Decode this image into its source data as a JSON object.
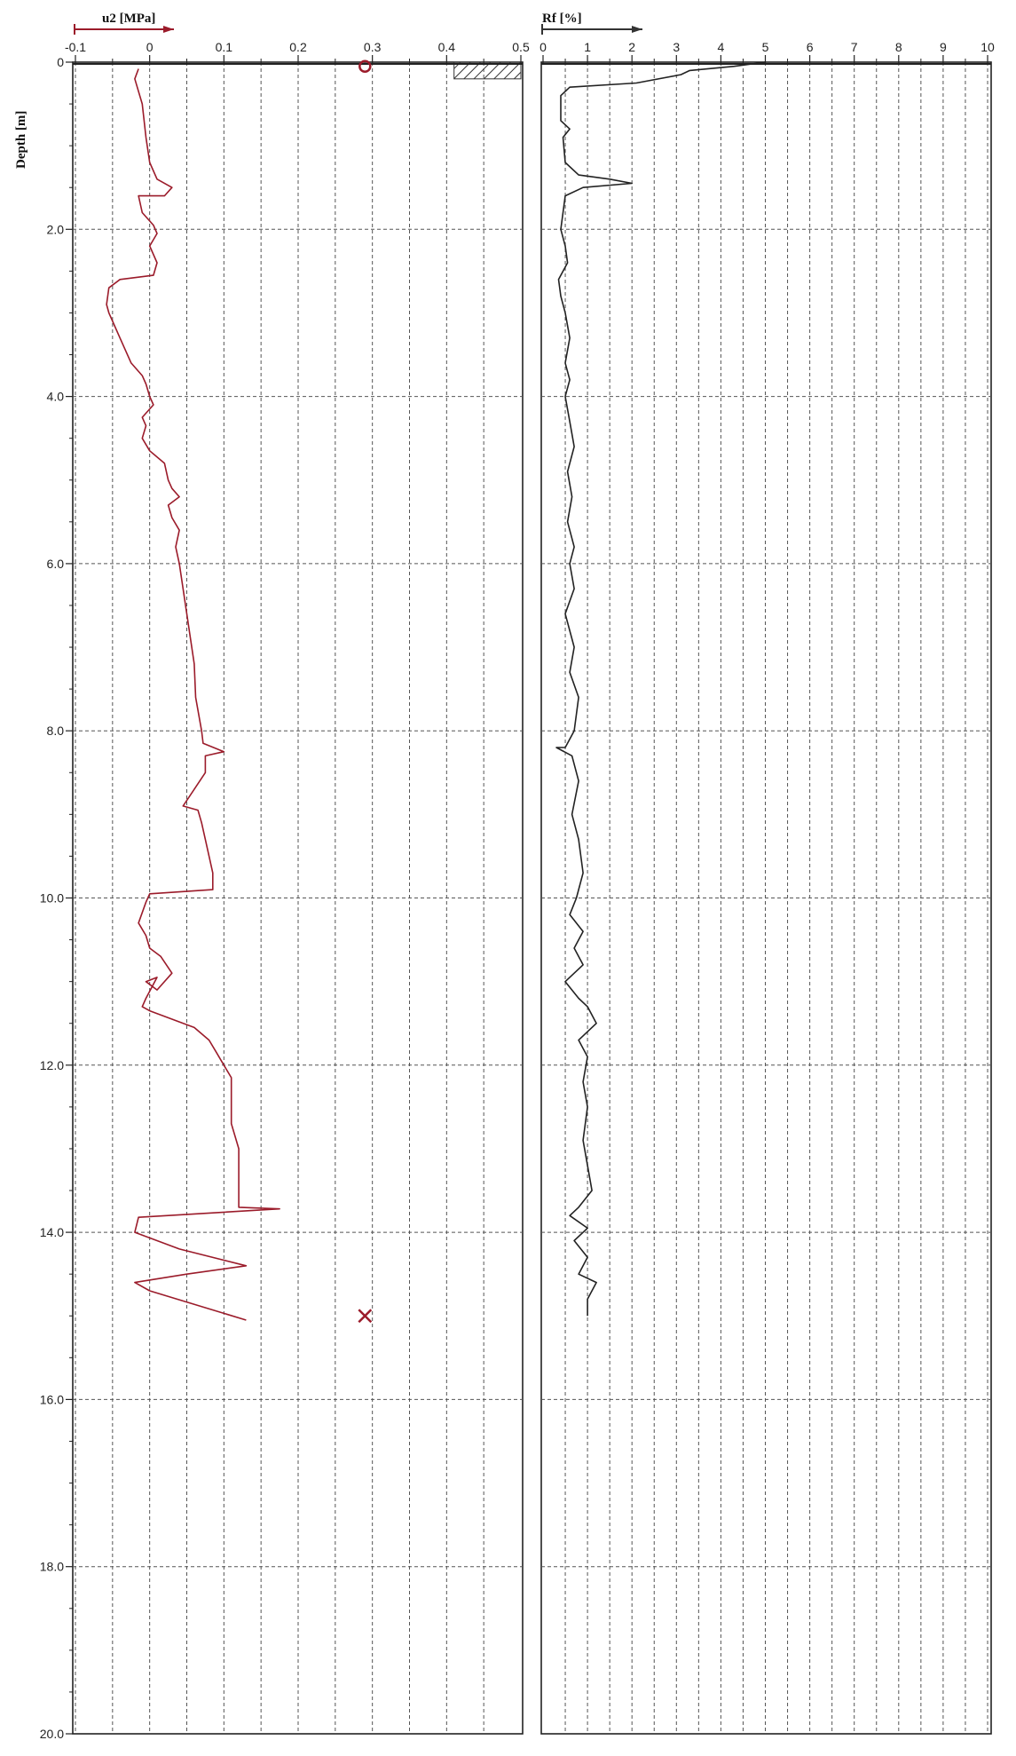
{
  "colors": {
    "u2_series": "#9b1b2a",
    "rf_series": "#222222",
    "marker": "#9b1b2a",
    "grid": "#555555",
    "frame": "#222222"
  },
  "chart_data": [
    {
      "type": "line",
      "orientation": "depth-down",
      "title": "u2 [MPa]",
      "ylabel": "Depth [m]",
      "xlim": [
        -0.1,
        0.5
      ],
      "ylim": [
        0,
        20
      ],
      "x_ticks": [
        "-0.1",
        "0",
        "0.1",
        "0.2",
        "0.3",
        "0.4",
        "0.5"
      ],
      "x_tick_values": [
        -0.1,
        0,
        0.1,
        0.2,
        0.3,
        0.4,
        0.5
      ],
      "y_ticks": [
        "0",
        "2.0",
        "4.0",
        "6.0",
        "8.0",
        "10.0",
        "12.0",
        "14.0",
        "16.0",
        "18.0",
        "20.0"
      ],
      "y_tick_values": [
        0,
        2,
        4,
        6,
        8,
        10,
        12,
        14,
        16,
        18,
        20
      ],
      "grid": true,
      "series": [
        {
          "color": "#9b1b2a",
          "points": [
            [
              -0.015,
              0.08
            ],
            [
              -0.02,
              0.2
            ],
            [
              -0.01,
              0.5
            ],
            [
              -0.005,
              0.9
            ],
            [
              0.0,
              1.2
            ],
            [
              0.01,
              1.4
            ],
            [
              0.03,
              1.5
            ],
            [
              0.02,
              1.6
            ],
            [
              -0.015,
              1.6
            ],
            [
              -0.01,
              1.8
            ],
            [
              0.005,
              1.95
            ],
            [
              0.01,
              2.05
            ],
            [
              0.0,
              2.2
            ],
            [
              0.01,
              2.4
            ],
            [
              0.005,
              2.55
            ],
            [
              -0.04,
              2.6
            ],
            [
              -0.055,
              2.7
            ],
            [
              -0.058,
              2.9
            ],
            [
              -0.055,
              3.0
            ],
            [
              -0.04,
              3.3
            ],
            [
              -0.025,
              3.6
            ],
            [
              -0.01,
              3.75
            ],
            [
              -0.005,
              3.85
            ],
            [
              0.0,
              4.0
            ],
            [
              0.005,
              4.1
            ],
            [
              -0.01,
              4.25
            ],
            [
              -0.005,
              4.35
            ],
            [
              -0.01,
              4.5
            ],
            [
              0.0,
              4.65
            ],
            [
              0.02,
              4.8
            ],
            [
              0.025,
              5.0
            ],
            [
              0.03,
              5.1
            ],
            [
              0.04,
              5.2
            ],
            [
              0.025,
              5.3
            ],
            [
              0.03,
              5.45
            ],
            [
              0.04,
              5.6
            ],
            [
              0.035,
              5.8
            ],
            [
              0.04,
              6.0
            ],
            [
              0.045,
              6.3
            ],
            [
              0.05,
              6.6
            ],
            [
              0.055,
              6.9
            ],
            [
              0.06,
              7.2
            ],
            [
              0.062,
              7.6
            ],
            [
              0.07,
              8.0
            ],
            [
              0.072,
              8.15
            ],
            [
              0.1,
              8.25
            ],
            [
              0.075,
              8.3
            ],
            [
              0.075,
              8.5
            ],
            [
              0.06,
              8.7
            ],
            [
              0.045,
              8.9
            ],
            [
              0.065,
              8.95
            ],
            [
              0.07,
              9.1
            ],
            [
              0.075,
              9.3
            ],
            [
              0.08,
              9.5
            ],
            [
              0.085,
              9.7
            ],
            [
              0.085,
              9.9
            ],
            [
              0.0,
              9.95
            ],
            [
              -0.005,
              10.05
            ],
            [
              -0.015,
              10.3
            ],
            [
              -0.005,
              10.45
            ],
            [
              0.0,
              10.6
            ],
            [
              0.015,
              10.7
            ],
            [
              0.03,
              10.9
            ],
            [
              0.01,
              11.1
            ],
            [
              -0.005,
              11.0
            ],
            [
              0.01,
              10.95
            ],
            [
              -0.005,
              11.2
            ],
            [
              -0.01,
              11.3
            ],
            [
              0.0,
              11.35
            ],
            [
              0.03,
              11.45
            ],
            [
              0.06,
              11.55
            ],
            [
              0.08,
              11.7
            ],
            [
              0.09,
              11.85
            ],
            [
              0.1,
              12.0
            ],
            [
              0.11,
              12.15
            ],
            [
              0.11,
              12.4
            ],
            [
              0.11,
              12.7
            ],
            [
              0.12,
              13.0
            ],
            [
              0.12,
              13.4
            ],
            [
              0.12,
              13.7
            ],
            [
              0.175,
              13.72
            ],
            [
              -0.015,
              13.82
            ],
            [
              -0.02,
              14.0
            ],
            [
              0.04,
              14.2
            ],
            [
              0.13,
              14.4
            ],
            [
              0.05,
              14.5
            ],
            [
              -0.02,
              14.6
            ],
            [
              0.0,
              14.7
            ],
            [
              0.13,
              15.05
            ]
          ]
        }
      ],
      "markers": [
        {
          "symbol": "circle",
          "x": 0.29,
          "y": 0.05
        },
        {
          "symbol": "cross",
          "x": 0.29,
          "y": 15.0
        }
      ],
      "annotations": [
        {
          "type": "hatched-block",
          "x": [
            0.41,
            0.5
          ],
          "y": [
            0.0,
            0.2
          ]
        }
      ]
    },
    {
      "type": "line",
      "orientation": "depth-down",
      "title": "Rf [%]",
      "ylabel": "",
      "xlim": [
        0,
        10
      ],
      "ylim": [
        0,
        20
      ],
      "x_ticks": [
        "0",
        "1",
        "2",
        "3",
        "4",
        "5",
        "6",
        "7",
        "8",
        "9",
        "10"
      ],
      "x_tick_values": [
        0,
        1,
        2,
        3,
        4,
        5,
        6,
        7,
        8,
        9,
        10
      ],
      "grid": true,
      "series": [
        {
          "color": "#222222",
          "points": [
            [
              5.0,
              0.0
            ],
            [
              4.3,
              0.05
            ],
            [
              3.3,
              0.1
            ],
            [
              3.1,
              0.15
            ],
            [
              2.1,
              0.25
            ],
            [
              0.6,
              0.3
            ],
            [
              0.4,
              0.4
            ],
            [
              0.4,
              0.7
            ],
            [
              0.6,
              0.8
            ],
            [
              0.45,
              0.9
            ],
            [
              0.5,
              1.2
            ],
            [
              0.8,
              1.35
            ],
            [
              1.5,
              1.4
            ],
            [
              2.0,
              1.45
            ],
            [
              0.9,
              1.5
            ],
            [
              0.5,
              1.6
            ],
            [
              0.45,
              1.8
            ],
            [
              0.4,
              2.0
            ],
            [
              0.5,
              2.2
            ],
            [
              0.55,
              2.4
            ],
            [
              0.35,
              2.6
            ],
            [
              0.4,
              2.8
            ],
            [
              0.5,
              3.0
            ],
            [
              0.6,
              3.3
            ],
            [
              0.5,
              3.6
            ],
            [
              0.6,
              3.8
            ],
            [
              0.5,
              4.0
            ],
            [
              0.6,
              4.3
            ],
            [
              0.7,
              4.6
            ],
            [
              0.55,
              4.9
            ],
            [
              0.65,
              5.2
            ],
            [
              0.55,
              5.5
            ],
            [
              0.7,
              5.8
            ],
            [
              0.6,
              6.0
            ],
            [
              0.7,
              6.3
            ],
            [
              0.5,
              6.6
            ],
            [
              0.7,
              7.0
            ],
            [
              0.6,
              7.3
            ],
            [
              0.8,
              7.6
            ],
            [
              0.7,
              8.0
            ],
            [
              0.5,
              8.2
            ],
            [
              0.3,
              8.2
            ],
            [
              0.65,
              8.3
            ],
            [
              0.8,
              8.6
            ],
            [
              0.65,
              9.0
            ],
            [
              0.8,
              9.3
            ],
            [
              0.9,
              9.7
            ],
            [
              0.75,
              10.0
            ],
            [
              0.6,
              10.2
            ],
            [
              0.9,
              10.4
            ],
            [
              0.7,
              10.6
            ],
            [
              0.9,
              10.8
            ],
            [
              0.5,
              11.0
            ],
            [
              0.8,
              11.2
            ],
            [
              1.0,
              11.3
            ],
            [
              1.2,
              11.5
            ],
            [
              0.8,
              11.7
            ],
            [
              1.0,
              11.9
            ],
            [
              0.9,
              12.2
            ],
            [
              1.0,
              12.5
            ],
            [
              0.9,
              12.9
            ],
            [
              1.0,
              13.2
            ],
            [
              1.1,
              13.5
            ],
            [
              0.8,
              13.7
            ],
            [
              0.6,
              13.8
            ],
            [
              1.0,
              13.95
            ],
            [
              0.7,
              14.1
            ],
            [
              1.0,
              14.3
            ],
            [
              0.8,
              14.5
            ],
            [
              1.2,
              14.6
            ],
            [
              1.0,
              14.8
            ],
            [
              1.0,
              15.0
            ]
          ]
        }
      ]
    }
  ]
}
